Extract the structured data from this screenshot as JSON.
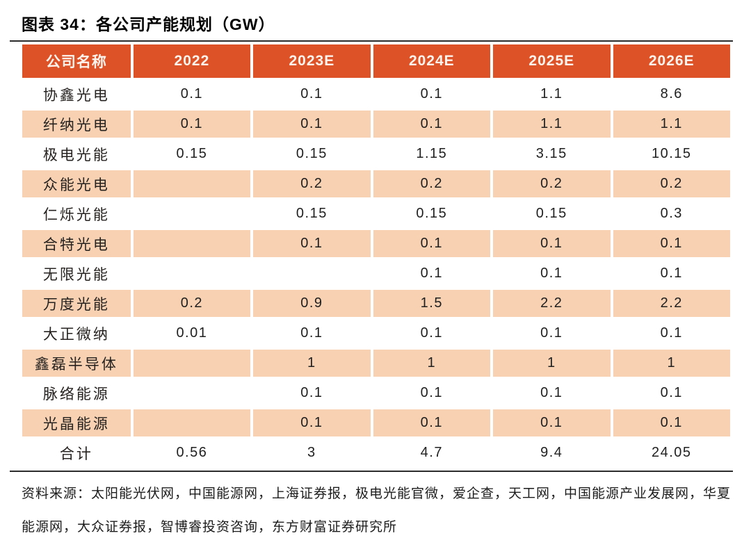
{
  "title": "图表 34：各公司产能规划（GW）",
  "source": "资料来源：太阳能光伏网，中国能源网，上海证券报，极电光能官微，爱企查，天工网，中国能源产业发展网，华夏能源网，大众证券报，智博睿投资咨询，东方财富证券研究所",
  "colors": {
    "header_bg": "#de5227",
    "header_text": "#fdf4ee",
    "alt_row_bg": "#f8d1b2",
    "rule": "#2b2b2b",
    "body_text": "#1a1a1a"
  },
  "chart_data": {
    "type": "table",
    "title": "各公司产能规划（GW）",
    "columns": [
      "公司名称",
      "2022",
      "2023E",
      "2024E",
      "2025E",
      "2026E"
    ],
    "rows": [
      {
        "name": "协鑫光电",
        "values": [
          "0.1",
          "0.1",
          "0.1",
          "1.1",
          "8.6"
        ]
      },
      {
        "name": "纤纳光电",
        "values": [
          "0.1",
          "0.1",
          "0.1",
          "1.1",
          "1.1"
        ]
      },
      {
        "name": "极电光能",
        "values": [
          "0.15",
          "0.15",
          "1.15",
          "3.15",
          "10.15"
        ]
      },
      {
        "name": "众能光电",
        "values": [
          "",
          "0.2",
          "0.2",
          "0.2",
          "0.2"
        ]
      },
      {
        "name": "仁烁光能",
        "values": [
          "",
          "0.15",
          "0.15",
          "0.15",
          "0.3"
        ]
      },
      {
        "name": "合特光电",
        "values": [
          "",
          "0.1",
          "0.1",
          "0.1",
          "0.1"
        ]
      },
      {
        "name": "无限光能",
        "values": [
          "",
          "",
          "0.1",
          "0.1",
          "0.1"
        ]
      },
      {
        "name": "万度光能",
        "values": [
          "0.2",
          "0.9",
          "1.5",
          "2.2",
          "2.2"
        ]
      },
      {
        "name": "大正微纳",
        "values": [
          "0.01",
          "0.1",
          "0.1",
          "0.1",
          "0.1"
        ]
      },
      {
        "name": "鑫磊半导体",
        "values": [
          "",
          "1",
          "1",
          "1",
          "1"
        ]
      },
      {
        "name": "脉络能源",
        "values": [
          "",
          "0.1",
          "0.1",
          "0.1",
          "0.1"
        ]
      },
      {
        "name": "光晶能源",
        "values": [
          "",
          "0.1",
          "0.1",
          "0.1",
          "0.1"
        ]
      }
    ],
    "total_row": {
      "name": "合计",
      "values": [
        "0.56",
        "3",
        "4.7",
        "9.4",
        "24.05"
      ]
    }
  }
}
